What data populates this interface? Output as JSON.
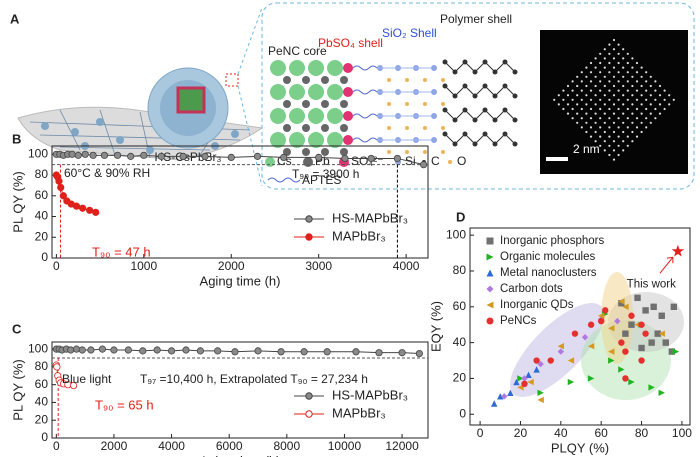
{
  "panel_a": {
    "label": "A",
    "particle_label": "HS-CsPbBr₃",
    "core": "PeNC core",
    "shell_1": "PbSO₄ shell",
    "shell_2": "SiO₂ Shell",
    "shell_3": "Polymer shell",
    "legend": [
      "Cs",
      "Pb",
      "SO₄²⁻",
      "Si",
      "C",
      "O"
    ],
    "linker": "APTES",
    "scale_bar": "2 nm"
  },
  "chart_data": [
    {
      "panel": "B",
      "type": "line",
      "xlabel": "Aging time (h)",
      "ylabel": "PL QY (%)",
      "xlim": [
        -50,
        4250
      ],
      "ylim": [
        0,
        108
      ],
      "xticks": [
        0,
        1000,
        2000,
        3000,
        4000
      ],
      "yticks": [
        0,
        20,
        40,
        60,
        80,
        100
      ],
      "series": [
        {
          "name": "HS-MAPbBr₃",
          "color": "#444444",
          "marker_fill": "#8a8a8a",
          "x": [
            0,
            40,
            80,
            130,
            180,
            250,
            330,
            420,
            550,
            700,
            850,
            1000,
            1200,
            1450,
            1700,
            2000,
            2300,
            2600,
            3000,
            3300,
            3600,
            3900,
            4200
          ],
          "values": [
            100,
            100,
            99,
            100,
            100,
            99,
            100,
            99,
            99,
            99,
            98,
            99,
            98,
            98,
            98,
            97,
            98,
            97,
            97,
            96,
            96,
            96,
            90
          ]
        },
        {
          "name": "MAPbBr₃",
          "color": "#e0201b",
          "marker_fill": "#e0201b",
          "x": [
            0,
            15,
            30,
            50,
            80,
            120,
            170,
            230,
            300,
            380,
            450
          ],
          "values": [
            80,
            78,
            74,
            68,
            60,
            55,
            52,
            50,
            48,
            46,
            44
          ]
        }
      ],
      "hline": 90,
      "vlines": [
        {
          "x": 47,
          "color": "#e0201b"
        },
        {
          "x": 3900,
          "color": "#000000"
        }
      ],
      "annotations": [
        "60°C & 90% RH",
        "T₉₀ = 3900 h",
        "T₉₀ = 47 h"
      ]
    },
    {
      "panel": "C",
      "type": "line",
      "xlabel": "Aging time (h)",
      "ylabel": "PL QY (%)",
      "xlim": [
        -150,
        12900
      ],
      "ylim": [
        0,
        108
      ],
      "xticks": [
        0,
        2000,
        4000,
        6000,
        8000,
        10000,
        12000
      ],
      "yticks": [
        0,
        20,
        40,
        60,
        80,
        100
      ],
      "series": [
        {
          "name": "HS-MAPbBr₃",
          "color": "#444444",
          "marker_fill": "#8a8a8a",
          "x": [
            0,
            100,
            200,
            350,
            500,
            700,
            900,
            1200,
            1600,
            2000,
            2500,
            3000,
            3500,
            4000,
            4500,
            5000,
            5600,
            6200,
            7000,
            7800,
            8600,
            9400,
            10400,
            11200,
            12000,
            12600
          ],
          "values": [
            100,
            100,
            99,
            100,
            99,
            100,
            99,
            99,
            100,
            99,
            99,
            98,
            99,
            98,
            99,
            98,
            98,
            97,
            98,
            97,
            97,
            97,
            97,
            96,
            96,
            95
          ]
        },
        {
          "name": "MAPbBr₃",
          "color": "#e0201b",
          "marker_fill": "#ffffff",
          "x": [
            0,
            20,
            50,
            100,
            150,
            250,
            400,
            600
          ],
          "values": [
            82,
            80,
            70,
            65,
            62,
            61,
            60,
            59
          ]
        }
      ],
      "hline": 90,
      "vlines": [
        {
          "x": 65,
          "color": "#e0201b"
        }
      ],
      "annotations": [
        "Blue light",
        "T₉₇ =10,400 h, Extrapolated T₉₀ = 27,234 h",
        "T₉₀ = 65 h"
      ]
    },
    {
      "panel": "D",
      "type": "scatter",
      "xlabel": "PLQY (%)",
      "ylabel": "EQY (%)",
      "xlim": [
        -5,
        104
      ],
      "ylim": [
        -6,
        104
      ],
      "xticks": [
        0,
        20,
        40,
        60,
        80,
        100
      ],
      "yticks": [
        0,
        20,
        40,
        60,
        80,
        100
      ],
      "series": [
        {
          "name": "Inorganic phosphors",
          "color": "#707070",
          "marker": "square",
          "x": [
            70,
            78,
            82,
            86,
            88,
            90,
            92,
            95,
            85,
            75,
            80,
            96,
            72
          ],
          "values": [
            62,
            65,
            58,
            60,
            45,
            55,
            40,
            35,
            40,
            50,
            37,
            60,
            45
          ]
        },
        {
          "name": "Organic molecules",
          "color": "#22b322",
          "marker": "triangle-right",
          "x": [
            20,
            30,
            45,
            55,
            62,
            65,
            75,
            85,
            90,
            70,
            80,
            97
          ],
          "values": [
            20,
            12,
            18,
            20,
            56,
            30,
            18,
            15,
            12,
            25,
            50,
            35
          ]
        },
        {
          "name": "Metal nanoclusters",
          "color": "#2f6bd6",
          "marker": "triangle-up",
          "x": [
            7,
            10,
            15,
            18,
            24,
            28
          ],
          "values": [
            6,
            10,
            12,
            18,
            22,
            25
          ]
        },
        {
          "name": "Carbon dots",
          "color": "#b07ae0",
          "marker": "diamond",
          "x": [
            12,
            22,
            30,
            40,
            52,
            60,
            68
          ],
          "values": [
            10,
            20,
            28,
            35,
            43,
            53,
            52
          ]
        },
        {
          "name": "Inorganic QDs",
          "color": "#d49a22",
          "marker": "triangle-left",
          "x": [
            20,
            25,
            30,
            40,
            45,
            55,
            60,
            65,
            70,
            72,
            65,
            78,
            90
          ],
          "values": [
            15,
            18,
            8,
            38,
            30,
            38,
            55,
            48,
            63,
            60,
            35,
            50,
            45
          ]
        },
        {
          "name": "PeNCs",
          "color": "#e53030",
          "marker": "circle",
          "x": [
            22,
            28,
            35,
            47,
            55,
            60,
            62,
            70,
            72,
            72,
            75,
            80,
            82,
            80
          ],
          "values": [
            17,
            30,
            30,
            45,
            50,
            52,
            58,
            40,
            20,
            35,
            55,
            50,
            45,
            30
          ]
        }
      ],
      "highlight": {
        "text": "This work",
        "x": 98,
        "y": 91,
        "color": "#e0201b"
      }
    }
  ]
}
